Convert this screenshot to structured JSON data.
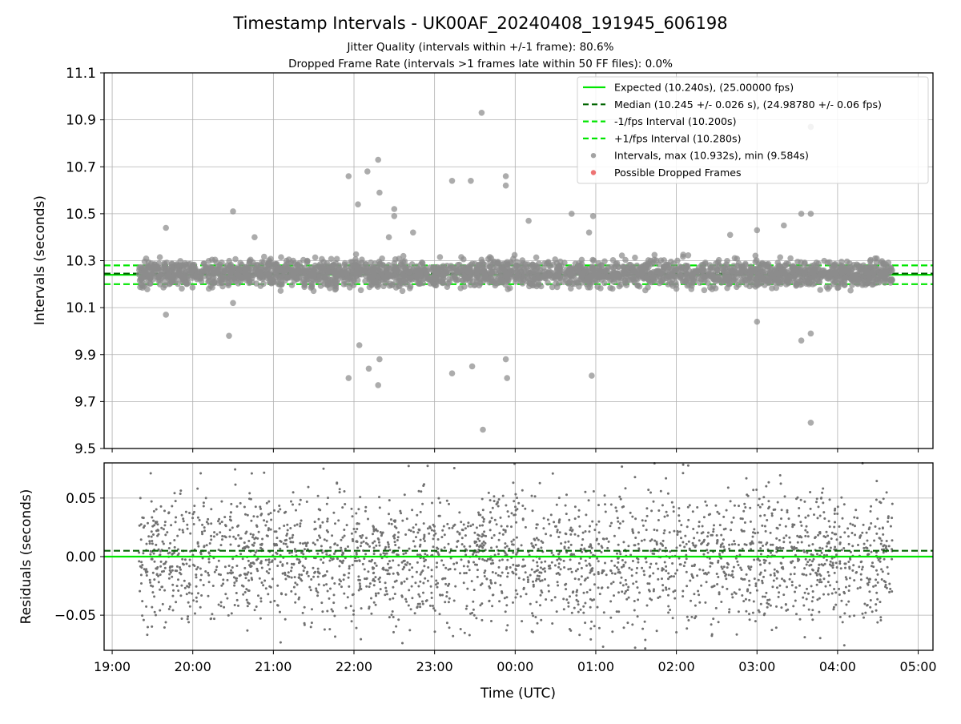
{
  "chart_data": [
    {
      "type": "scatter",
      "panel": "intervals",
      "title": "Timestamp Intervals - UK00AF_20240408_191945_606198",
      "subtitle_lines": [
        "Jitter Quality (intervals within +/-1 frame): 80.6%",
        "Dropped Frame Rate (intervals >1 frames late within 50 FF files): 0.0%"
      ],
      "xlabel": "",
      "ylabel": "Intervals (seconds)",
      "ylim": [
        9.5,
        11.1
      ],
      "y_ticks": [
        "9.5",
        "9.7",
        "9.9",
        "10.1",
        "10.3",
        "10.5",
        "10.7",
        "10.9",
        "11.1"
      ],
      "y_tick_values": [
        9.5,
        9.7,
        9.9,
        10.1,
        10.3,
        10.5,
        10.7,
        10.9,
        11.1
      ],
      "grid": true,
      "legend_position": "upper right",
      "legend": [
        {
          "label": "Expected (10.240s), (25.00000 fps)",
          "style": "solid",
          "color": "#00e600"
        },
        {
          "label": "Median (10.245 +/- 0.026 s), (24.98780 +/- 0.06 fps)",
          "style": "dashed",
          "color": "#006400"
        },
        {
          "label": "-1/fps Interval (10.200s)",
          "style": "dashed",
          "color": "#00e600"
        },
        {
          "label": "+1/fps Interval (10.280s)",
          "style": "dashed",
          "color": "#00e600"
        },
        {
          "label": "Intervals, max (10.932s), min (9.584s)",
          "style": "marker",
          "color": "#8c8c8c"
        },
        {
          "label": "Possible Dropped Frames",
          "style": "marker",
          "color": "#e85050"
        }
      ],
      "reference_lines": {
        "expected": 10.24,
        "median": 10.245,
        "minus_one_fps": 10.2,
        "plus_one_fps": 10.28
      },
      "series": [
        {
          "name": "Intervals, max (10.932s), min (9.584s)",
          "color": "#8c8c8c",
          "band": {
            "x_start": "2024-04-08 19:20",
            "x_end": "2024-04-09 04:41",
            "core_min": 10.2,
            "core_max": 10.3
          },
          "outliers": [
            {
              "x": "19:40",
              "y": 10.44
            },
            {
              "x": "20:30",
              "y": 10.51
            },
            {
              "x": "20:46",
              "y": 10.4
            },
            {
              "x": "20:27",
              "y": 9.98
            },
            {
              "x": "21:56",
              "y": 10.66
            },
            {
              "x": "22:03",
              "y": 10.54
            },
            {
              "x": "22:10",
              "y": 10.68
            },
            {
              "x": "22:18",
              "y": 10.73
            },
            {
              "x": "22:19",
              "y": 10.59
            },
            {
              "x": "22:30",
              "y": 10.52
            },
            {
              "x": "22:30",
              "y": 10.49
            },
            {
              "x": "21:56",
              "y": 9.8
            },
            {
              "x": "22:04",
              "y": 9.94
            },
            {
              "x": "22:11",
              "y": 9.84
            },
            {
              "x": "22:19",
              "y": 9.88
            },
            {
              "x": "22:18",
              "y": 9.77
            },
            {
              "x": "22:26",
              "y": 10.4
            },
            {
              "x": "22:44",
              "y": 10.42
            },
            {
              "x": "23:13",
              "y": 10.64
            },
            {
              "x": "23:27",
              "y": 10.64
            },
            {
              "x": "23:35",
              "y": 10.93
            },
            {
              "x": "23:53",
              "y": 10.62
            },
            {
              "x": "23:53",
              "y": 10.66
            },
            {
              "x": "23:13",
              "y": 9.82
            },
            {
              "x": "23:28",
              "y": 9.85
            },
            {
              "x": "23:53",
              "y": 9.88
            },
            {
              "x": "23:54",
              "y": 9.8
            },
            {
              "x": "23:36",
              "y": 9.58
            },
            {
              "x": "00:10",
              "y": 10.47
            },
            {
              "x": "00:42",
              "y": 10.5
            },
            {
              "x": "00:55",
              "y": 10.42
            },
            {
              "x": "00:57",
              "y": 9.81
            },
            {
              "x": "00:58",
              "y": 10.49
            },
            {
              "x": "03:00",
              "y": 10.43
            },
            {
              "x": "03:20",
              "y": 10.45
            },
            {
              "x": "03:33",
              "y": 10.5
            },
            {
              "x": "03:40",
              "y": 10.5
            },
            {
              "x": "03:40",
              "y": 10.87
            },
            {
              "x": "03:40",
              "y": 9.61
            },
            {
              "x": "03:33",
              "y": 9.96
            },
            {
              "x": "03:40",
              "y": 9.99
            },
            {
              "x": "03:00",
              "y": 10.04
            },
            {
              "x": "02:40",
              "y": 10.41
            },
            {
              "x": "19:40",
              "y": 10.07
            },
            {
              "x": "20:30",
              "y": 10.12
            }
          ]
        },
        {
          "name": "Possible Dropped Frames",
          "color": "#e85050",
          "points": []
        }
      ]
    },
    {
      "type": "scatter",
      "panel": "residuals",
      "xlabel": "Time (UTC)",
      "ylabel": "Residuals (seconds)",
      "ylim": [
        -0.08,
        0.08
      ],
      "y_ticks": [
        "−0.05",
        "0.00",
        "0.05"
      ],
      "y_tick_values": [
        -0.05,
        0.0,
        0.05
      ],
      "xlim": [
        "2024-04-08 18:54",
        "2024-04-09 05:11"
      ],
      "x_ticks": [
        "19:00",
        "20:00",
        "21:00",
        "22:00",
        "23:00",
        "00:00",
        "01:00",
        "02:00",
        "03:00",
        "04:00",
        "05:00"
      ],
      "grid": true,
      "reference_lines": {
        "zero": 0.0,
        "median_offset": 0.005
      },
      "series": [
        {
          "name": "Residuals",
          "color": "#707070",
          "band": {
            "x_start": "2024-04-08 19:20",
            "x_end": "2024-04-09 04:41",
            "y_min": -0.08,
            "y_max": 0.08
          }
        }
      ]
    }
  ]
}
